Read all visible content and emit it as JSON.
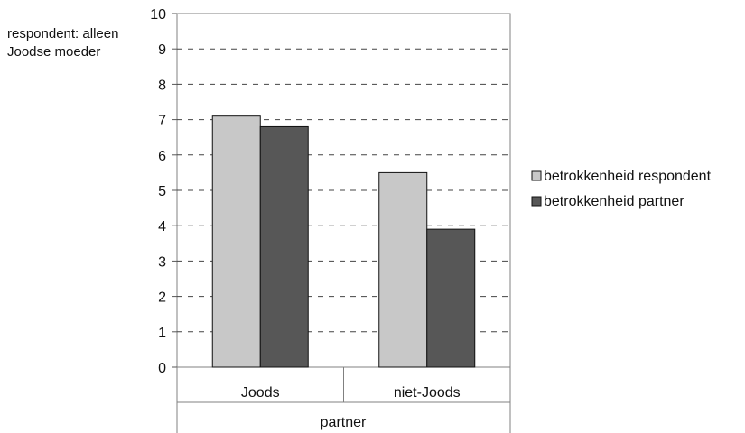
{
  "chart_data": {
    "type": "bar",
    "annotation": [
      "respondent: alleen",
      "Joodse moeder"
    ],
    "categories": [
      "Joods",
      "niet-Joods"
    ],
    "series": [
      {
        "name": "betrokkenheid respondent",
        "values": [
          7.1,
          5.5
        ],
        "color": "#c8c8c8"
      },
      {
        "name": "betrokkenheid partner",
        "values": [
          6.8,
          3.9
        ],
        "color": "#575757"
      }
    ],
    "xlabel": "partner",
    "ylabel": "",
    "ylim": [
      0,
      10
    ],
    "yticks": [
      "0",
      "1",
      "2",
      "3",
      "4",
      "5",
      "6",
      "7",
      "8",
      "9",
      "10"
    ],
    "grid": "dashed horizontal",
    "legend_position": "right"
  }
}
